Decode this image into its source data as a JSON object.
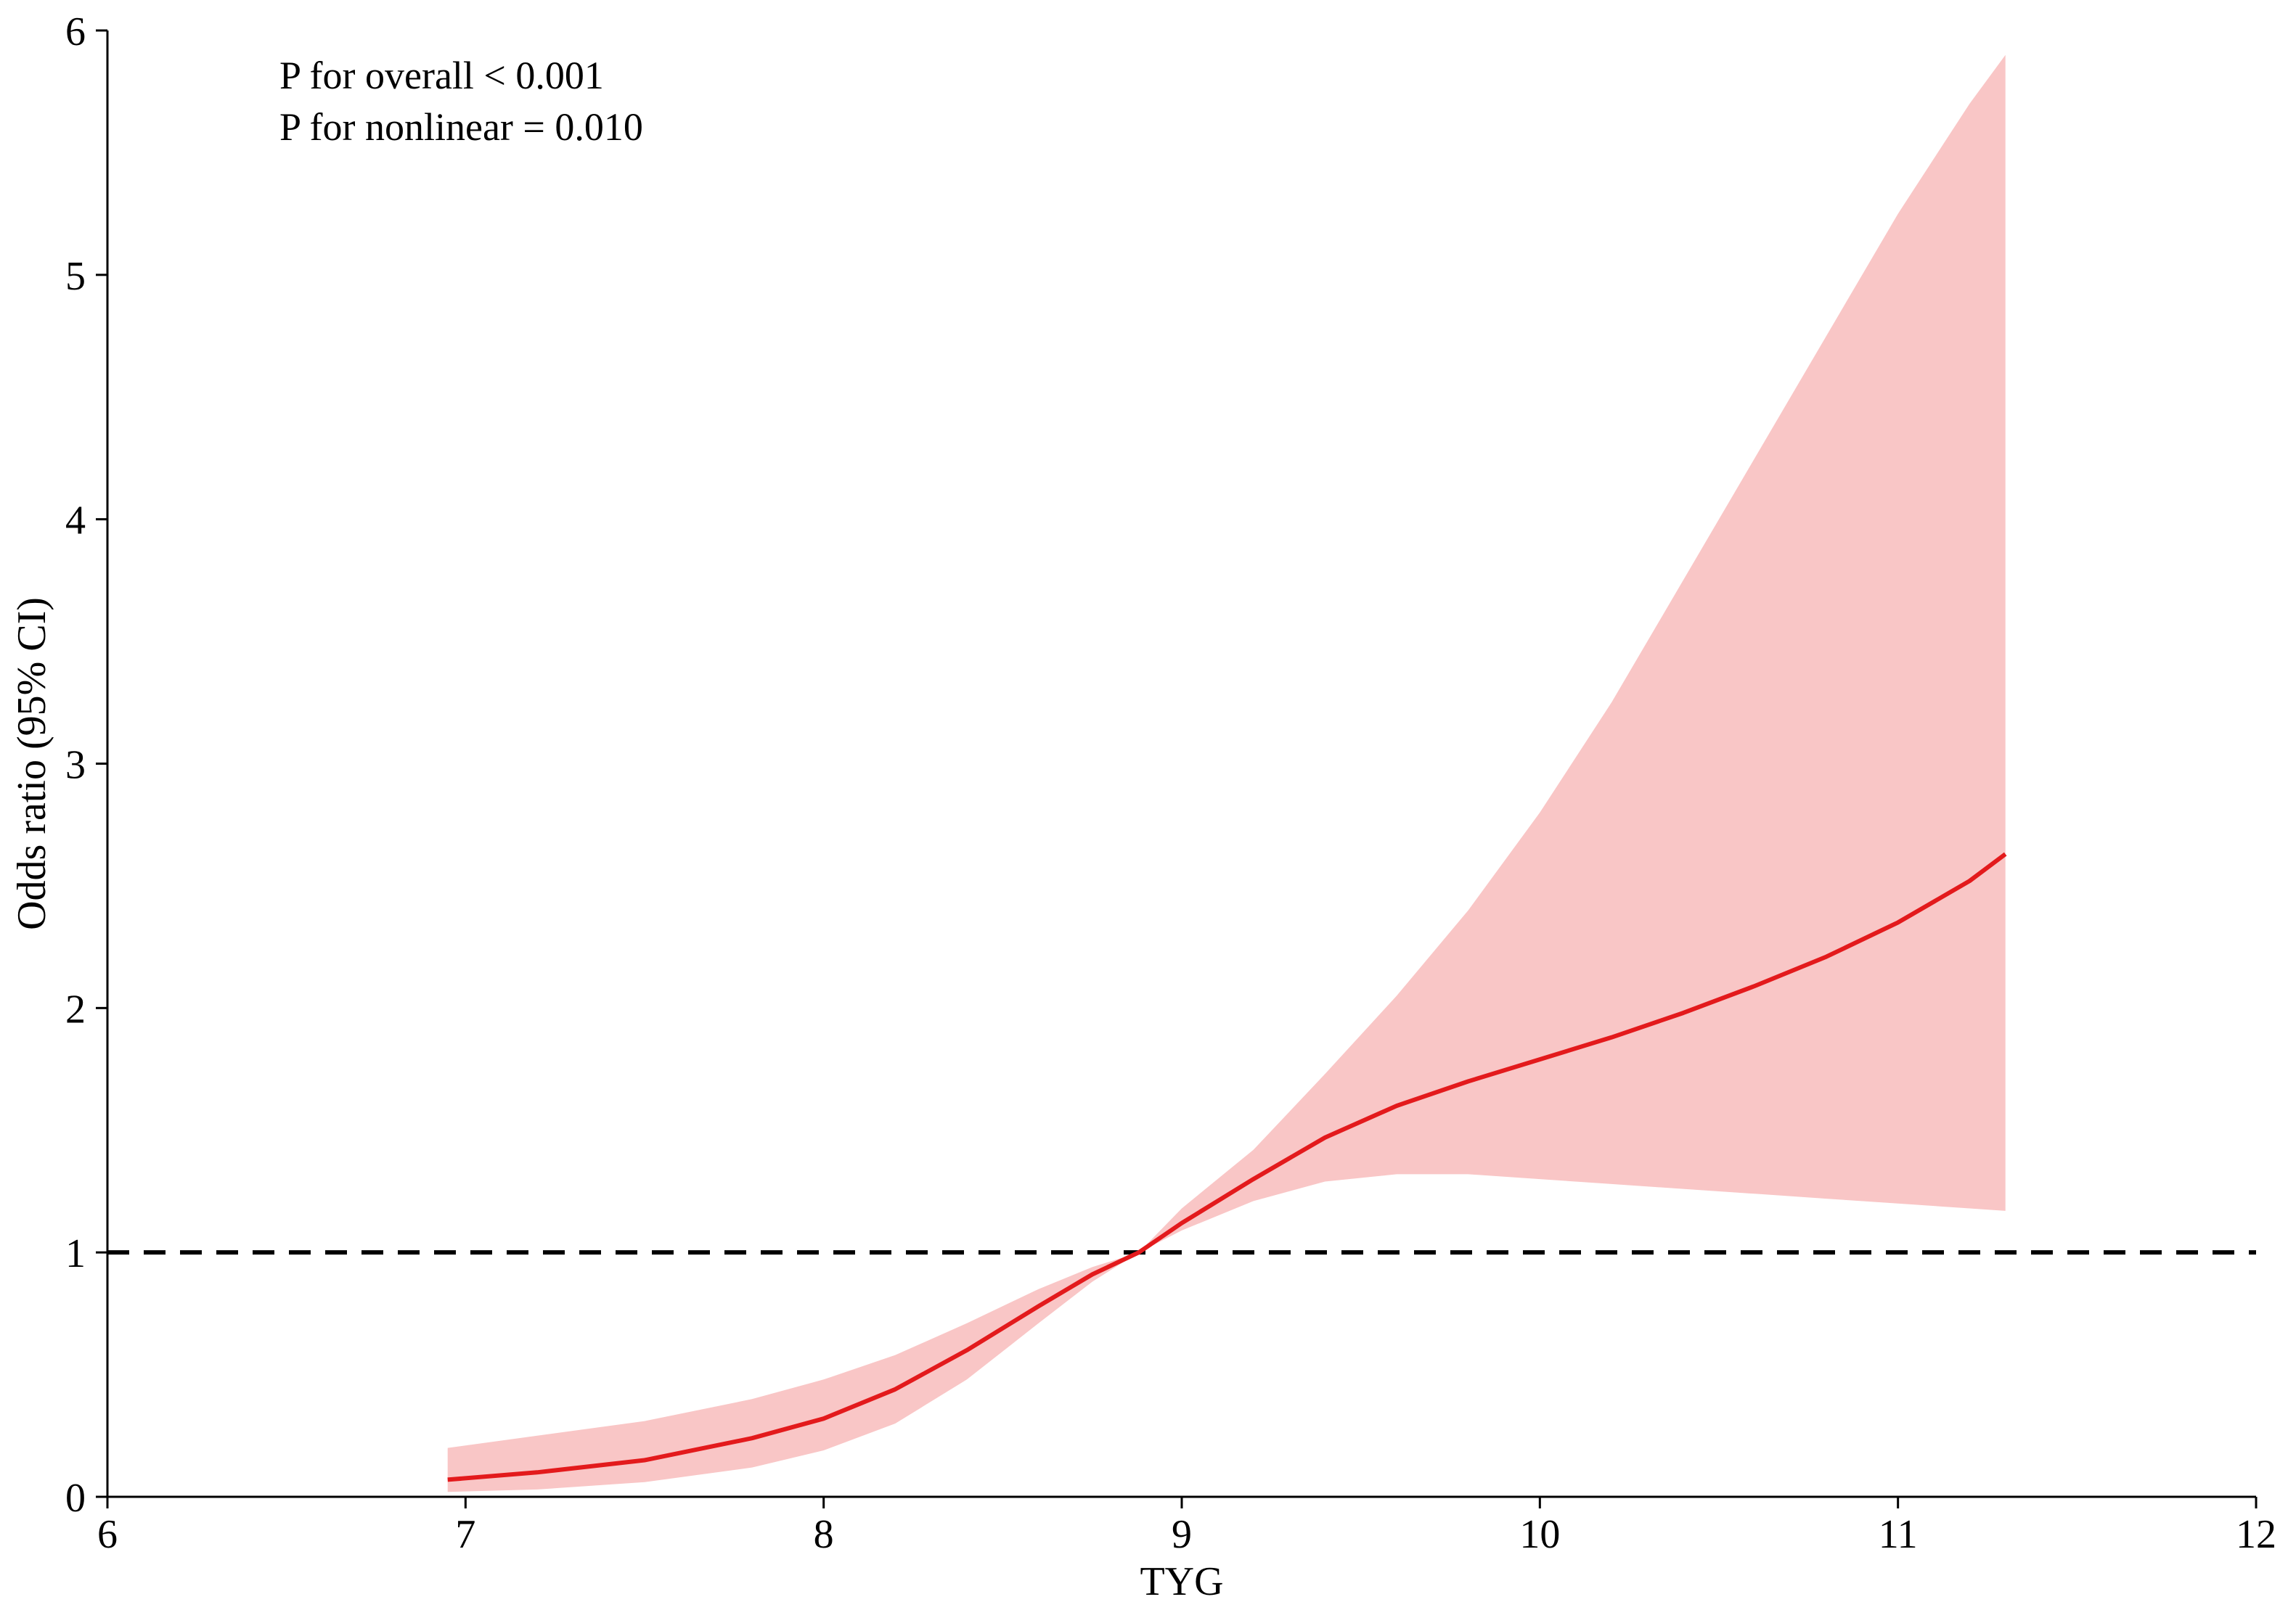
{
  "chart_data": {
    "type": "line",
    "xlabel": "TYG",
    "ylabel": "Odds ratio (95% CI)",
    "xlim": [
      6,
      12
    ],
    "ylim": [
      0,
      6
    ],
    "xticks": [
      "6",
      "7",
      "8",
      "9",
      "10",
      "11",
      "12"
    ],
    "yticks": [
      "0",
      "1",
      "2",
      "3",
      "4",
      "5",
      "6"
    ],
    "annotations": [
      "P for overall < 0.001",
      "P for nonlinear = 0.010"
    ],
    "reference_line": {
      "y": 1,
      "style": "dashed",
      "color": "#000000"
    },
    "colors": {
      "line": "#e31a1c",
      "band": "#f9c6c6"
    },
    "series": [
      {
        "x": [
          6.95,
          7.2,
          7.5,
          7.8,
          8.0,
          8.2,
          8.4,
          8.6,
          8.75,
          8.88,
          9.0,
          9.2,
          9.4,
          9.6,
          9.8,
          10.0,
          10.2,
          10.4,
          10.6,
          10.8,
          11.0,
          11.2,
          11.3
        ],
        "y": [
          0.07,
          0.1,
          0.15,
          0.24,
          0.32,
          0.44,
          0.6,
          0.78,
          0.91,
          1.0,
          1.12,
          1.3,
          1.47,
          1.6,
          1.7,
          1.79,
          1.88,
          1.98,
          2.09,
          2.21,
          2.35,
          2.52,
          2.63
        ],
        "lower": [
          0.02,
          0.03,
          0.06,
          0.12,
          0.19,
          0.3,
          0.48,
          0.71,
          0.88,
          1.0,
          1.09,
          1.21,
          1.29,
          1.32,
          1.32,
          1.3,
          1.28,
          1.26,
          1.24,
          1.22,
          1.2,
          1.18,
          1.17
        ],
        "upper": [
          0.2,
          0.25,
          0.31,
          0.4,
          0.48,
          0.58,
          0.71,
          0.85,
          0.94,
          1.0,
          1.18,
          1.42,
          1.73,
          2.05,
          2.4,
          2.8,
          3.25,
          3.75,
          4.25,
          4.75,
          5.25,
          5.7,
          5.9
        ]
      }
    ]
  }
}
